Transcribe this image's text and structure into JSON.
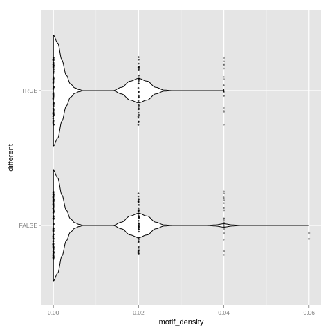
{
  "chart_data": {
    "type": "violin",
    "xlabel": "motif_density",
    "ylabel": "different",
    "xlim": [
      -0.0028,
      0.0628
    ],
    "x_ticks": [
      0.0,
      0.02,
      0.04,
      0.06
    ],
    "x_tick_labels": [
      "0.00",
      "0.02",
      "0.04",
      "0.06"
    ],
    "x_minor_ticks": [
      0.01,
      0.03,
      0.05
    ],
    "categories": [
      "TRUE",
      "FALSE"
    ],
    "grid": true,
    "legend": "none",
    "colors": {
      "panel_background": "#e5e5e5",
      "grid_major": "#ffffff",
      "grid_minor": "#f2f2f2",
      "violin_fill": "#ffffff",
      "violin_outline": "#000000",
      "points": "#000000"
    },
    "groups": [
      {
        "category": "TRUE",
        "violin_profile": [
          {
            "x": 0.0,
            "width": 1.0
          },
          {
            "x": 0.001,
            "width": 0.86
          },
          {
            "x": 0.002,
            "width": 0.55
          },
          {
            "x": 0.003,
            "width": 0.28
          },
          {
            "x": 0.004,
            "width": 0.12
          },
          {
            "x": 0.005,
            "width": 0.05
          },
          {
            "x": 0.006,
            "width": 0.02
          },
          {
            "x": 0.007,
            "width": 0.0
          },
          {
            "x": 0.014,
            "width": 0.0
          },
          {
            "x": 0.016,
            "width": 0.06
          },
          {
            "x": 0.018,
            "width": 0.17
          },
          {
            "x": 0.02,
            "width": 0.22
          },
          {
            "x": 0.022,
            "width": 0.17
          },
          {
            "x": 0.024,
            "width": 0.06
          },
          {
            "x": 0.026,
            "width": 0.01
          },
          {
            "x": 0.028,
            "width": 0.0
          },
          {
            "x": 0.04,
            "width": 0.0
          }
        ],
        "end_cap": {
          "x": 0.04,
          "width": 0.03
        },
        "points": [
          {
            "x": 0.0,
            "count": 60,
            "spread": 0.62,
            "opacity": 0.75
          },
          {
            "x": 0.02,
            "count": 34,
            "spread": 0.62,
            "opacity": 0.7
          },
          {
            "x": 0.04,
            "count": 18,
            "spread": 0.62,
            "opacity": 0.35
          }
        ]
      },
      {
        "category": "FALSE",
        "violin_profile": [
          {
            "x": 0.0,
            "width": 1.0
          },
          {
            "x": 0.001,
            "width": 0.86
          },
          {
            "x": 0.002,
            "width": 0.55
          },
          {
            "x": 0.003,
            "width": 0.28
          },
          {
            "x": 0.004,
            "width": 0.12
          },
          {
            "x": 0.005,
            "width": 0.05
          },
          {
            "x": 0.006,
            "width": 0.02
          },
          {
            "x": 0.007,
            "width": 0.0
          },
          {
            "x": 0.014,
            "width": 0.0
          },
          {
            "x": 0.016,
            "width": 0.06
          },
          {
            "x": 0.018,
            "width": 0.17
          },
          {
            "x": 0.02,
            "width": 0.22
          },
          {
            "x": 0.022,
            "width": 0.17
          },
          {
            "x": 0.024,
            "width": 0.06
          },
          {
            "x": 0.026,
            "width": 0.01
          },
          {
            "x": 0.028,
            "width": 0.0
          },
          {
            "x": 0.036,
            "width": 0.0
          },
          {
            "x": 0.038,
            "width": 0.01
          },
          {
            "x": 0.04,
            "width": 0.03
          },
          {
            "x": 0.042,
            "width": 0.01
          },
          {
            "x": 0.044,
            "width": 0.0
          },
          {
            "x": 0.06,
            "width": 0.0
          }
        ],
        "end_cap": null,
        "points": [
          {
            "x": 0.0,
            "count": 80,
            "spread": 0.62,
            "opacity": 0.85
          },
          {
            "x": 0.02,
            "count": 40,
            "spread": 0.62,
            "opacity": 0.75
          },
          {
            "x": 0.04,
            "count": 22,
            "spread": 0.62,
            "opacity": 0.4
          },
          {
            "x": 0.06,
            "count": 2,
            "spread": 0.3,
            "opacity": 0.35
          }
        ]
      }
    ]
  }
}
